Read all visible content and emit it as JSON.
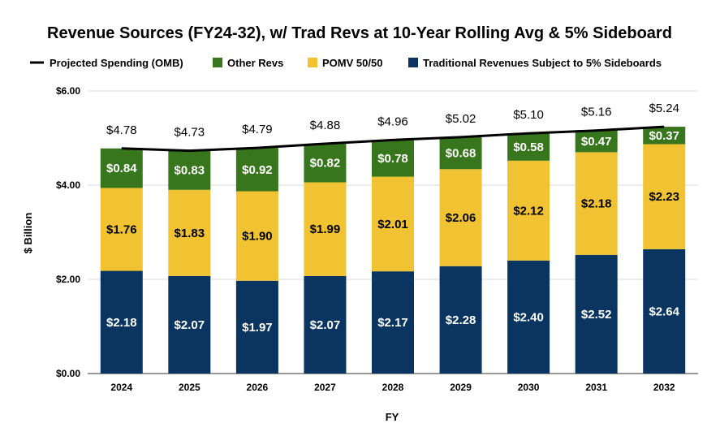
{
  "chart_data": {
    "type": "bar",
    "stacked": true,
    "title": "Revenue Sources (FY24-32),  w/ Trad Revs at 10-Year Rolling Avg & 5% Sideboard",
    "xlabel": "FY",
    "ylabel": "$ Billion",
    "ylim": [
      0,
      6
    ],
    "yticks": [
      "$0.00",
      "$2.00",
      "$4.00",
      "$6.00"
    ],
    "grid": true,
    "legend_position": "top",
    "categories": [
      "2024",
      "2025",
      "2026",
      "2027",
      "2028",
      "2029",
      "2030",
      "2031",
      "2032"
    ],
    "series": [
      {
        "name": "Traditional Revenues Subject to 5% Sideboards",
        "color": "#0b3561",
        "values": [
          2.18,
          2.07,
          1.97,
          2.07,
          2.17,
          2.28,
          2.4,
          2.52,
          2.64
        ],
        "labels": [
          "$2.18",
          "$2.07",
          "$1.97",
          "$2.07",
          "$2.17",
          "$2.28",
          "$2.40",
          "$2.52",
          "$2.64"
        ]
      },
      {
        "name": "POMV 50/50",
        "color": "#f1c232",
        "values": [
          1.76,
          1.83,
          1.9,
          1.99,
          2.01,
          2.06,
          2.12,
          2.18,
          2.23
        ],
        "labels": [
          "$1.76",
          "$1.83",
          "$1.90",
          "$1.99",
          "$2.01",
          "$2.06",
          "$2.12",
          "$2.18",
          "$2.23"
        ]
      },
      {
        "name": "Other Revs",
        "color": "#38761d",
        "values": [
          0.84,
          0.83,
          0.92,
          0.82,
          0.78,
          0.68,
          0.58,
          0.47,
          0.37
        ],
        "labels": [
          "$0.84",
          "$0.83",
          "$0.92",
          "$0.82",
          "$0.78",
          "$0.68",
          "$0.58",
          "$0.47",
          "$0.37"
        ]
      }
    ],
    "line": {
      "name": "Projected Spending (OMB)",
      "color": "#000000",
      "values": [
        4.78,
        4.73,
        4.79,
        4.88,
        4.96,
        5.02,
        5.1,
        5.16,
        5.24
      ],
      "labels": [
        "$4.78",
        "$4.73",
        "$4.79",
        "$4.88",
        "$4.96",
        "$5.02",
        "$5.10",
        "$5.16",
        "$5.24"
      ]
    },
    "legend": [
      {
        "name": "Projected Spending (OMB)",
        "color": "#000000",
        "kind": "line"
      },
      {
        "name": "Other Revs",
        "color": "#38761d",
        "kind": "box"
      },
      {
        "name": "POMV 50/50",
        "color": "#f1c232",
        "kind": "box"
      },
      {
        "name": "Traditional Revenues Subject to 5% Sideboards",
        "color": "#0b3561",
        "kind": "box"
      }
    ]
  }
}
